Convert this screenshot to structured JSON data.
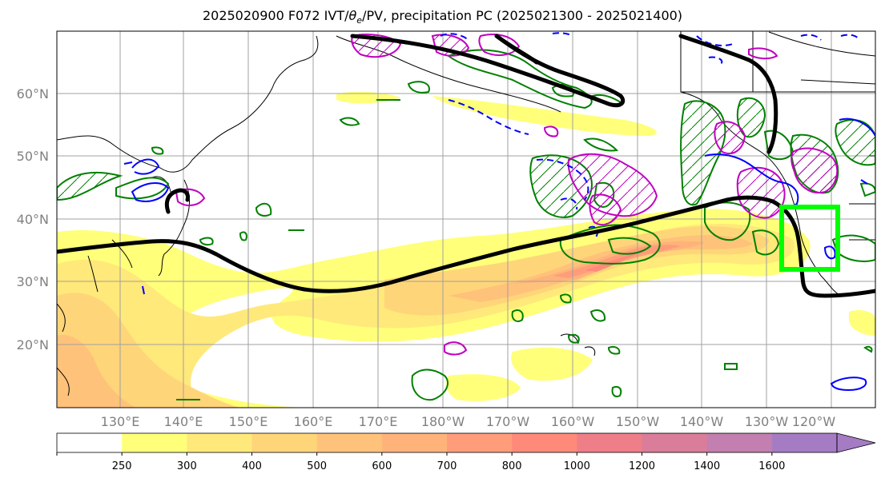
{
  "figure": {
    "title_prefix": "2025020900 F072 IVT/",
    "title_theta": "θ",
    "title_theta_sub": "e",
    "title_suffix": "/PV, precipitation PC (2025021300 - 2025021400)"
  },
  "map": {
    "lat_labels": [
      "60°N",
      "50°N",
      "40°N",
      "30°N",
      "20°N"
    ],
    "lon_labels": [
      "130°E",
      "140°E",
      "150°E",
      "160°E",
      "170°E",
      "180°W",
      "170°W",
      "160°W",
      "150°W",
      "140°W",
      "130°W",
      "120°W"
    ],
    "region_box_color": "#00ff00"
  },
  "colorbar": {
    "ticks": [
      "250",
      "300",
      "400",
      "500",
      "600",
      "700",
      "800",
      "1000",
      "1200",
      "1400",
      "1600"
    ],
    "colors": [
      "#ffffff",
      "#ffff7a",
      "#ffe97a",
      "#ffd57a",
      "#ffc27a",
      "#ffb37a",
      "#ff9d7a",
      "#ff8a7a",
      "#ee7e88",
      "#d97d9a",
      "#c27fb0",
      "#a57cc4"
    ]
  },
  "contour_colors": {
    "ivt": "#000000",
    "theta_e": "#008000",
    "pv_positive": "#c000c0",
    "pv_negative": "#0000ff"
  }
}
